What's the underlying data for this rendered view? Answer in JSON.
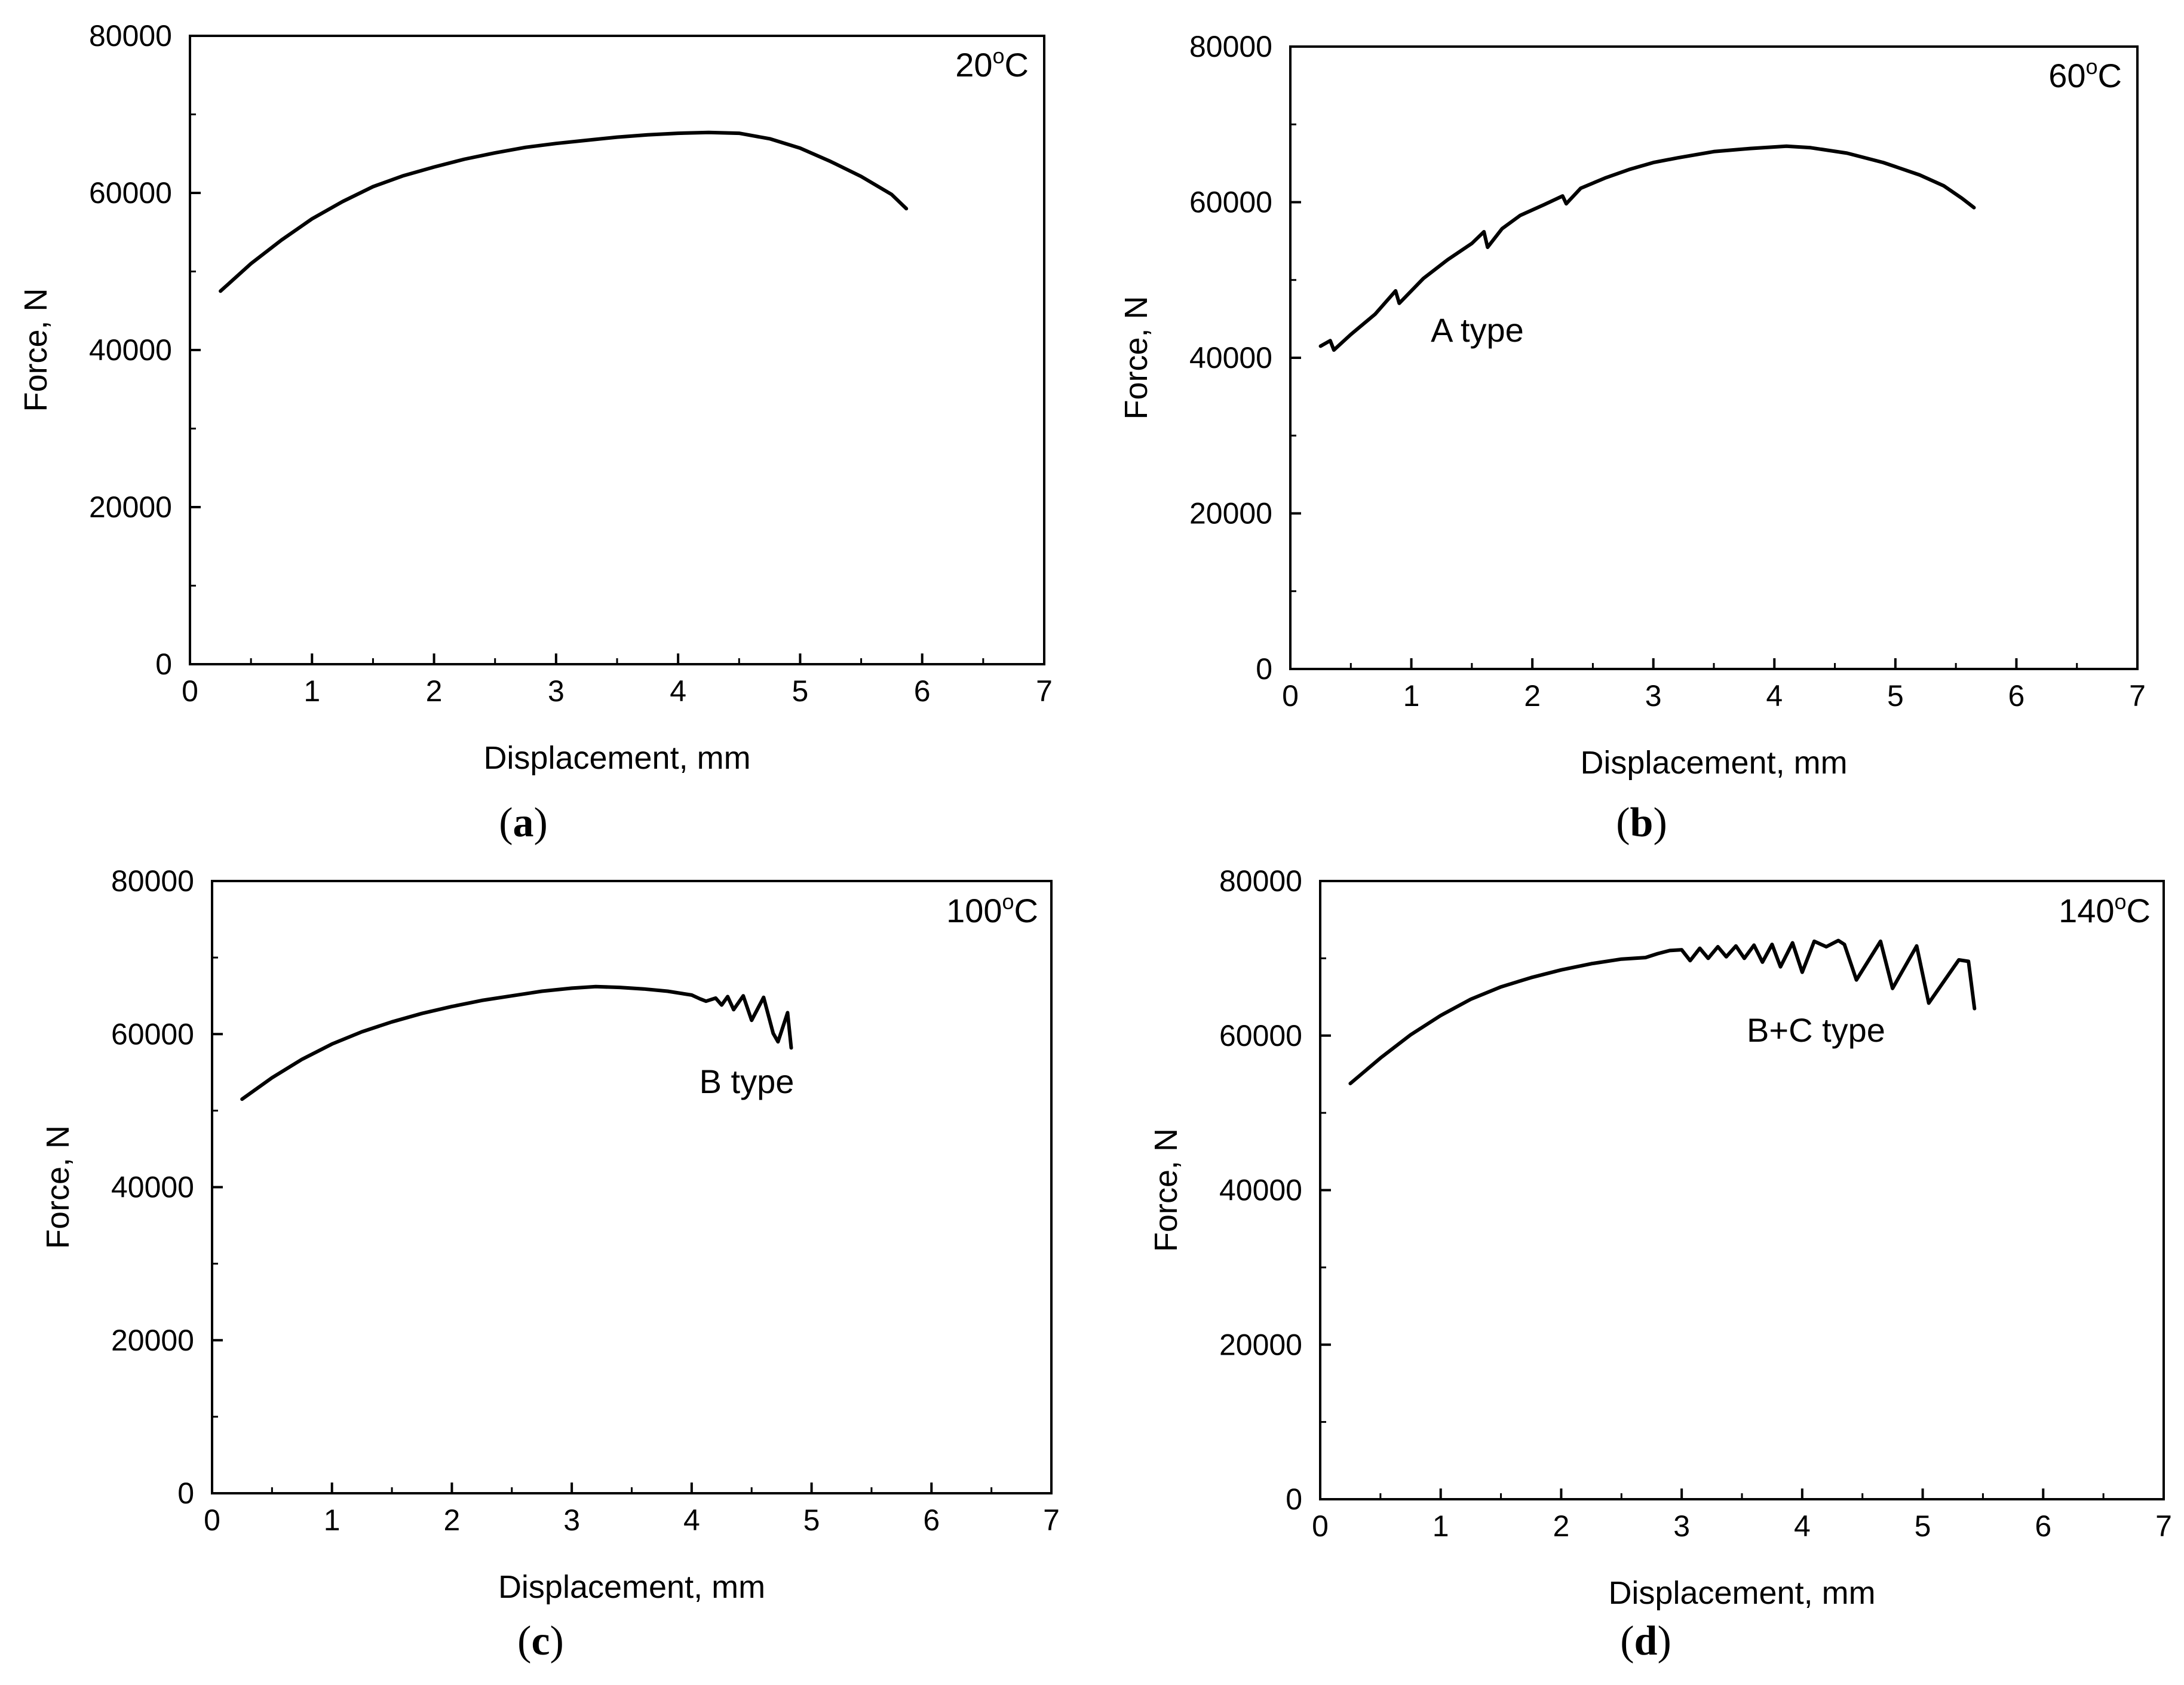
{
  "figure": {
    "panels": [
      {
        "id": "a",
        "temperature": "20",
        "temperature_unit": "C",
        "annotation": "",
        "panel_letter": "a"
      },
      {
        "id": "b",
        "temperature": "60",
        "temperature_unit": "C",
        "annotation": "A type",
        "panel_letter": "b"
      },
      {
        "id": "c",
        "temperature": "100",
        "temperature_unit": "C",
        "annotation": "B type",
        "panel_letter": "c"
      },
      {
        "id": "d",
        "temperature": "140",
        "temperature_unit": "C",
        "annotation": "B+C type",
        "panel_letter": "d"
      }
    ]
  },
  "chart_data": [
    {
      "type": "line",
      "panel": "a",
      "title": "20°C",
      "xlabel": "Displacement, mm",
      "ylabel": "Force, N",
      "xlim": [
        0,
        7
      ],
      "ylim": [
        0,
        80000
      ],
      "xticks": [
        0,
        1,
        2,
        3,
        4,
        5,
        6,
        7
      ],
      "yticks": [
        0,
        20000,
        40000,
        60000,
        80000
      ],
      "series": [
        {
          "name": "20°C",
          "x": [
            0.25,
            0.5,
            0.75,
            1.0,
            1.25,
            1.5,
            1.75,
            2.0,
            2.25,
            2.5,
            2.75,
            3.0,
            3.25,
            3.5,
            3.75,
            4.0,
            4.25,
            4.5,
            4.75,
            5.0,
            5.25,
            5.5,
            5.75,
            5.87
          ],
          "y": [
            47500,
            51000,
            54000,
            56700,
            58900,
            60800,
            62200,
            63300,
            64300,
            65100,
            65800,
            66300,
            66700,
            67100,
            67400,
            67600,
            67700,
            67600,
            66900,
            65700,
            64000,
            62100,
            59800,
            58000
          ]
        }
      ]
    },
    {
      "type": "line",
      "panel": "b",
      "title": "60°C",
      "annotation": "A type",
      "xlabel": "Displacement, mm",
      "ylabel": "Force, N",
      "xlim": [
        0,
        7
      ],
      "ylim": [
        0,
        80000
      ],
      "xticks": [
        0,
        1,
        2,
        3,
        4,
        5,
        6,
        7
      ],
      "yticks": [
        0,
        20000,
        40000,
        60000,
        80000
      ],
      "series": [
        {
          "name": "60°C",
          "x": [
            0.25,
            0.33,
            0.36,
            0.5,
            0.7,
            0.87,
            0.9,
            1.1,
            1.3,
            1.5,
            1.6,
            1.63,
            1.75,
            1.9,
            2.1,
            2.25,
            2.28,
            2.4,
            2.6,
            2.8,
            3.0,
            3.2,
            3.5,
            3.8,
            4.1,
            4.3,
            4.6,
            4.9,
            5.2,
            5.4,
            5.55,
            5.65
          ],
          "y": [
            41500,
            42200,
            41000,
            43000,
            45600,
            48600,
            47000,
            50200,
            52600,
            54700,
            56200,
            54200,
            56600,
            58300,
            59700,
            60800,
            59800,
            61800,
            63100,
            64200,
            65100,
            65700,
            66500,
            66900,
            67200,
            67000,
            66300,
            65100,
            63500,
            62100,
            60500,
            59300
          ]
        }
      ]
    },
    {
      "type": "line",
      "panel": "c",
      "title": "100°C",
      "annotation": "B type",
      "xlabel": "Displacement, mm",
      "ylabel": "Force, N",
      "xlim": [
        0,
        7
      ],
      "ylim": [
        0,
        80000
      ],
      "xticks": [
        0,
        1,
        2,
        3,
        4,
        5,
        6,
        7
      ],
      "yticks": [
        0,
        20000,
        40000,
        60000,
        80000
      ],
      "series": [
        {
          "name": "100°C",
          "x": [
            0.25,
            0.5,
            0.75,
            1.0,
            1.25,
            1.5,
            1.75,
            2.0,
            2.25,
            2.5,
            2.75,
            3.0,
            3.2,
            3.4,
            3.6,
            3.8,
            4.0,
            4.07,
            4.12,
            4.2,
            4.25,
            4.3,
            4.35,
            4.43,
            4.5,
            4.6,
            4.68,
            4.72,
            4.8,
            4.83
          ],
          "y": [
            51500,
            54300,
            56700,
            58700,
            60300,
            61600,
            62700,
            63600,
            64400,
            65000,
            65600,
            66000,
            66200,
            66100,
            65900,
            65600,
            65100,
            64600,
            64300,
            64700,
            63800,
            64900,
            63200,
            65000,
            61800,
            64800,
            60100,
            59000,
            62800,
            58200
          ]
        }
      ]
    },
    {
      "type": "line",
      "panel": "d",
      "title": "140°C",
      "annotation": "B+C type",
      "xlabel": "Displacement, mm",
      "ylabel": "Force, N",
      "xlim": [
        0,
        7
      ],
      "ylim": [
        0,
        80000
      ],
      "xticks": [
        0,
        1,
        2,
        3,
        4,
        5,
        6,
        7
      ],
      "yticks": [
        0,
        20000,
        40000,
        60000,
        80000
      ],
      "series": [
        {
          "name": "140°C",
          "x": [
            0.25,
            0.5,
            0.75,
            1.0,
            1.25,
            1.5,
            1.75,
            2.0,
            2.25,
            2.5,
            2.7,
            2.8,
            2.9,
            3.0,
            3.07,
            3.15,
            3.22,
            3.3,
            3.37,
            3.45,
            3.52,
            3.6,
            3.67,
            3.75,
            3.82,
            3.92,
            4.0,
            4.1,
            4.2,
            4.3,
            4.35,
            4.45,
            4.65,
            4.75,
            4.95,
            5.05,
            5.3,
            5.38,
            5.43
          ],
          "y": [
            53800,
            57100,
            60100,
            62600,
            64700,
            66300,
            67500,
            68500,
            69300,
            69900,
            70100,
            70600,
            71000,
            71100,
            69700,
            71300,
            70000,
            71500,
            70200,
            71600,
            70000,
            71700,
            69500,
            71800,
            68900,
            72000,
            68200,
            72200,
            71500,
            72300,
            71800,
            67200,
            72200,
            66100,
            71600,
            64200,
            69800,
            69600,
            63500
          ]
        }
      ]
    }
  ]
}
